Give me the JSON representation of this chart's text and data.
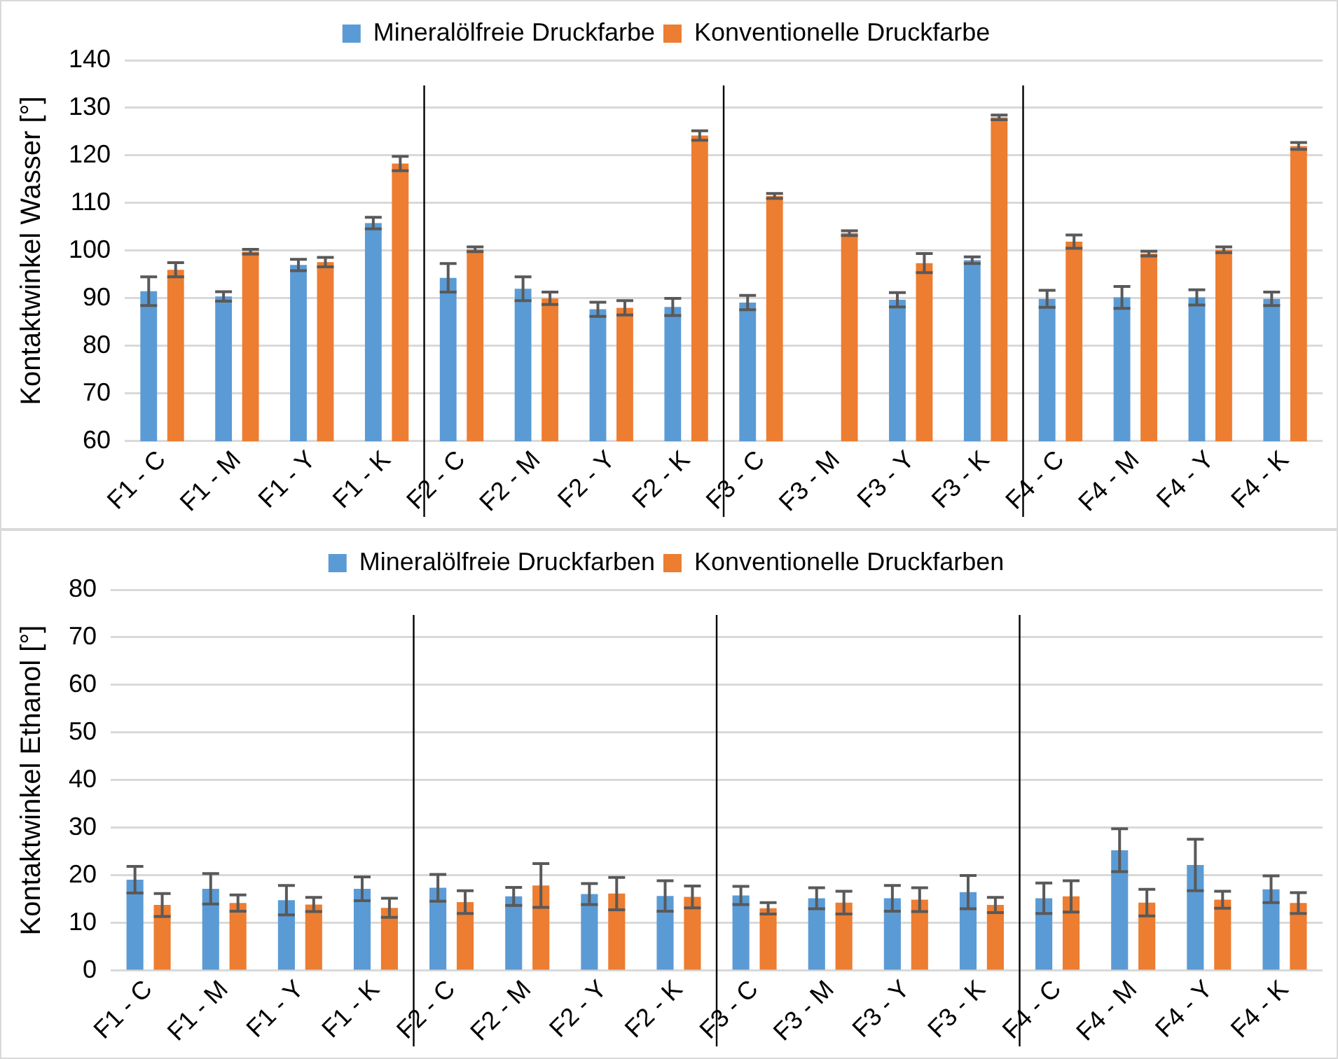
{
  "chart_data": [
    {
      "type": "bar",
      "ylabel": "Kontaktwinkel Wasser [°]",
      "categories": [
        "F1 - C",
        "F1 - M",
        "F1 - Y",
        "F1 - K",
        "F2 - C",
        "F2 - M",
        "F2 - Y",
        "F2 - K",
        "F3 - C",
        "F3 - M",
        "F3 - Y",
        "F3 - K",
        "F4 - C",
        "F4 - M",
        "F4 - Y",
        "F4 - K"
      ],
      "series": [
        {
          "name": "Mineralölfreie Druckfarbe",
          "color": "#5b9bd5",
          "values": [
            91.5,
            90.4,
            97,
            105.8,
            94.3,
            92,
            87.7,
            88.2,
            89.1,
            null,
            89.7,
            98,
            89.9,
            90.2,
            90.2,
            89.9
          ],
          "errors": [
            3,
            1,
            1.2,
            1.2,
            3,
            2.5,
            1.5,
            1.8,
            1.5,
            null,
            1.5,
            0.7,
            1.8,
            2.3,
            1.6,
            1.4
          ]
        },
        {
          "name": "Konventionelle Druckfarbe",
          "color": "#ed7d31",
          "values": [
            96,
            99.8,
            97.6,
            118.3,
            100.3,
            90,
            88,
            124.2,
            111.5,
            103.7,
            97.4,
            128,
            101.9,
            99.4,
            100.2,
            122
          ],
          "errors": [
            1.5,
            0.5,
            1,
            1.5,
            0.5,
            1.3,
            1.5,
            1,
            0.5,
            0.5,
            2,
            0.5,
            1.4,
            0.5,
            0.6,
            0.7
          ]
        }
      ],
      "ylim": [
        60,
        140
      ],
      "yticks": [
        60,
        70,
        80,
        90,
        100,
        110,
        120,
        130,
        140
      ],
      "grid": "y",
      "legend": "top"
    },
    {
      "type": "bar",
      "ylabel": "Kontaktwinkel Ethanol [°]",
      "categories": [
        "F1 - C",
        "F1 - M",
        "F1 - Y",
        "F1 - K",
        "F2 - C",
        "F2 - M",
        "F2 - Y",
        "F2 - K",
        "F3 - C",
        "F3 - M",
        "F3 - Y",
        "F3 - K",
        "F4 - C",
        "F4 - M",
        "F4 - Y",
        "F4 - K"
      ],
      "series": [
        {
          "name": "Mineralölfreie Druckfarben",
          "color": "#5b9bd5",
          "values": [
            19.1,
            17.2,
            14.8,
            17.2,
            17.4,
            15.6,
            16.1,
            15.7,
            15.8,
            15.2,
            15.2,
            16.5,
            15.2,
            25.3,
            22.2,
            17.1
          ],
          "errors": [
            2.8,
            3.2,
            3.1,
            2.5,
            2.8,
            1.9,
            2.2,
            3.2,
            1.9,
            2.2,
            2.7,
            3.5,
            3.2,
            4.5,
            5.4,
            2.8
          ]
        },
        {
          "name": "Konventionelle Druckfarben",
          "color": "#ed7d31",
          "values": [
            13.8,
            14.2,
            13.9,
            13.2,
            14.4,
            17.9,
            16.2,
            15.5,
            13.1,
            14.3,
            14.9,
            13.8,
            15.6,
            14.3,
            14.9,
            14.2
          ],
          "errors": [
            2.4,
            1.7,
            1.5,
            2,
            2.4,
            4.6,
            3.4,
            2.3,
            1.2,
            2.4,
            2.5,
            1.6,
            3.3,
            2.8,
            1.8,
            2.2
          ]
        }
      ],
      "ylim": [
        0,
        80
      ],
      "yticks": [
        0,
        10,
        20,
        30,
        40,
        50,
        60,
        70,
        80
      ],
      "grid": "y",
      "legend": "top"
    }
  ]
}
